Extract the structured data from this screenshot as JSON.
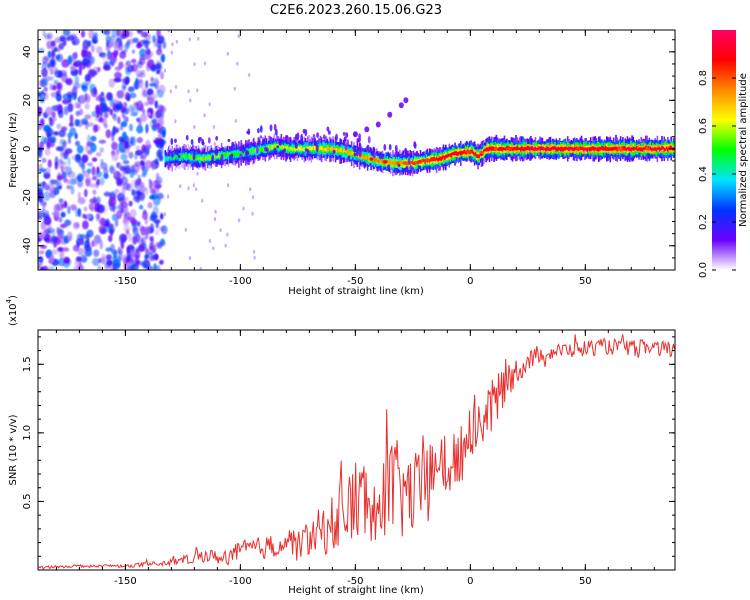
{
  "title": "C2E6.2023.260.15.06.G23",
  "chart_data": [
    {
      "type": "heatmap",
      "xlabel": "Height of straight line (km)",
      "ylabel": "Frequency (Hz)",
      "xlim": [
        -188,
        89
      ],
      "ylim": [
        -50,
        49
      ],
      "x_ticks": [
        -150,
        -100,
        -50,
        0,
        50
      ],
      "x_tick_labels": [
        "-150",
        "-100",
        "-50",
        "0",
        "50"
      ],
      "y_ticks": [
        -40,
        -20,
        0,
        20,
        40
      ],
      "y_tick_labels": [
        "-40",
        "-20",
        "0",
        "20",
        "40"
      ],
      "grid": false,
      "colorbar": {
        "label": "Normalized spectral amplitude",
        "range": [
          0.0,
          1.0
        ],
        "ticks": [
          0.0,
          0.2,
          0.4,
          0.6,
          0.8
        ],
        "tick_labels": [
          "0.0",
          "0.2",
          "0.4",
          "0.6",
          "0.8"
        ],
        "colormap": [
          "#ffffff",
          "#6a00ff",
          "#0033ff",
          "#00e5ff",
          "#00ff00",
          "#ffff00",
          "#ff8800",
          "#ff0000",
          "#ff0066"
        ]
      },
      "noise_region_x": [
        -188,
        -133
      ],
      "signal_ridge": {
        "x": [
          -133,
          -125,
          -117,
          -110,
          -100,
          -90,
          -85,
          -78,
          -70,
          -62,
          -55,
          -48,
          -40,
          -33,
          -27,
          -20,
          -13,
          -7,
          0,
          3,
          7,
          15,
          25,
          40,
          60,
          89
        ],
        "freq": [
          -4,
          -3,
          -4,
          -3,
          -2,
          0,
          1,
          0,
          0,
          0,
          -1,
          -3,
          -5,
          -6,
          -6,
          -5,
          -4,
          -2,
          -1,
          -3,
          0,
          0,
          0,
          0,
          0,
          0
        ],
        "amplitude": [
          0.4,
          0.5,
          0.55,
          0.55,
          0.5,
          0.55,
          0.6,
          0.6,
          0.65,
          0.7,
          0.7,
          0.7,
          0.75,
          0.75,
          0.8,
          0.85,
          0.9,
          0.9,
          0.9,
          0.9,
          0.9,
          0.92,
          0.95,
          0.95,
          0.95,
          0.95
        ]
      },
      "secondary_trace": {
        "x": [
          -50,
          -45,
          -40,
          -35,
          -30,
          -28
        ],
        "freq": [
          6,
          8,
          10,
          14,
          18,
          20
        ]
      }
    },
    {
      "type": "line",
      "xlabel": "Height of straight line (km)",
      "ylabel": "SNR (10 * v/v)",
      "y_scale_label": "(x10",
      "y_scale_exponent": "4",
      "y_scale_close": ")",
      "xlim": [
        -188,
        89
      ],
      "ylim": [
        0,
        1.75
      ],
      "x_ticks": [
        -150,
        -100,
        -50,
        0,
        50
      ],
      "x_tick_labels": [
        "-150",
        "-100",
        "-50",
        "0",
        "50"
      ],
      "y_ticks": [
        0.5,
        1.0,
        1.5
      ],
      "y_tick_labels": [
        "0.5",
        "1.0",
        "1.5"
      ],
      "grid": false,
      "series": [
        {
          "color": "#e8312f",
          "x": [
            -188,
            -170,
            -150,
            -140,
            -133,
            -125,
            -120,
            -115,
            -110,
            -105,
            -100,
            -95,
            -90,
            -85,
            -80,
            -75,
            -70,
            -65,
            -60,
            -55,
            -50,
            -45,
            -40,
            -35,
            -30,
            -25,
            -20,
            -15,
            -10,
            -5,
            0,
            5,
            10,
            15,
            20,
            25,
            30,
            40,
            50,
            60,
            70,
            80,
            89
          ],
          "y": [
            0.02,
            0.03,
            0.03,
            0.04,
            0.05,
            0.07,
            0.09,
            0.11,
            0.09,
            0.1,
            0.14,
            0.16,
            0.16,
            0.18,
            0.2,
            0.2,
            0.24,
            0.28,
            0.34,
            0.42,
            0.5,
            0.52,
            0.58,
            0.62,
            0.56,
            0.55,
            0.6,
            0.7,
            0.78,
            0.8,
            1.05,
            1.1,
            1.2,
            1.38,
            1.45,
            1.52,
            1.58,
            1.6,
            1.62,
            1.63,
            1.62,
            1.62,
            1.6
          ],
          "noise_amplitude": [
            0.01,
            0.01,
            0.01,
            0.02,
            0.02,
            0.03,
            0.04,
            0.05,
            0.05,
            0.06,
            0.07,
            0.08,
            0.08,
            0.09,
            0.1,
            0.12,
            0.14,
            0.18,
            0.22,
            0.28,
            0.32,
            0.34,
            0.36,
            0.38,
            0.36,
            0.3,
            0.28,
            0.28,
            0.26,
            0.24,
            0.22,
            0.22,
            0.2,
            0.16,
            0.1,
            0.08,
            0.07,
            0.06,
            0.06,
            0.06,
            0.06,
            0.06,
            0.06
          ]
        }
      ]
    }
  ]
}
